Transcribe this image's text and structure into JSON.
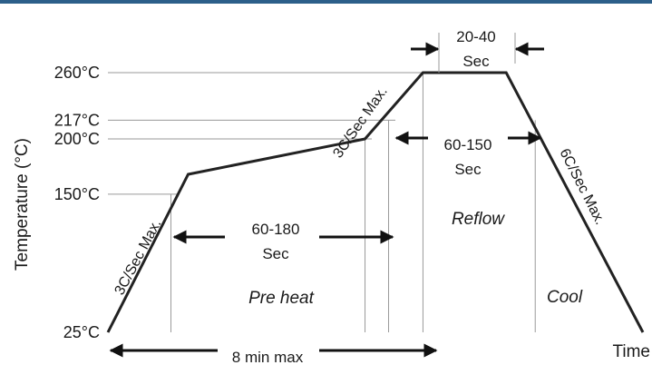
{
  "chart_data": {
    "type": "line",
    "title": "",
    "ylabel": "Temperature  (°C)",
    "xlabel": "Time",
    "y_ticks": [
      {
        "value": 25,
        "label": "25°C"
      },
      {
        "value": 150,
        "label": "150°C"
      },
      {
        "value": 200,
        "label": "200°C"
      },
      {
        "value": 217,
        "label": "217°C"
      },
      {
        "value": 260,
        "label": "260°C"
      }
    ],
    "profile": [
      {
        "t": 0,
        "temp": 25
      },
      {
        "t": 54,
        "temp": 168
      },
      {
        "t": 173,
        "temp": 200
      },
      {
        "t": 212,
        "temp": 260
      },
      {
        "t": 268,
        "temp": 260
      },
      {
        "t": 360,
        "temp": 25
      }
    ],
    "xlim": [
      0,
      360
    ],
    "ylim": [
      25,
      260
    ],
    "grid": "horizontal reference lines at tick temperatures",
    "legend": "none"
  },
  "annotations": {
    "ramp_up_1": "3C/Sec Max.",
    "ramp_up_2": "3C/Sec Max.",
    "ramp_down": "6C/Sec Max.",
    "preheat_time": "60-180",
    "preheat_unit": "Sec",
    "reflow_time": "60-150",
    "reflow_unit": "Sec",
    "peak_time": "20-40",
    "peak_unit": "Sec",
    "total_time": "8 min max",
    "zone_preheat": "Pre heat",
    "zone_reflow": "Reflow",
    "zone_cool": "Cool"
  },
  "colors": {
    "accent_bar": "#2c5f8a",
    "curve": "#222222",
    "grid": "#9a9a9a"
  }
}
